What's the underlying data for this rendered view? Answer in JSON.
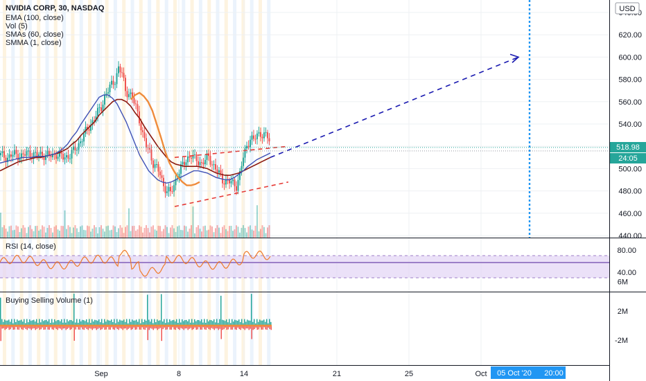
{
  "header": {
    "symbol_line": "NVIDIA CORP, 30, NASDAQ",
    "indicators": [
      "EMA (100, close)",
      "Vol (5)",
      "SMAs (60, close)",
      "SMMA (1, close)"
    ]
  },
  "currency_button": "USD",
  "price_badge": "518.98",
  "countdown_badge": "24:05",
  "cursor_badges": {
    "date": "05 Oct '20",
    "time": "20:00"
  },
  "colors": {
    "up": "#26a69a",
    "down": "#ef5350",
    "ema": "#8b1a10",
    "sma": "#3f51b5",
    "smma": "#ef8b3a",
    "dashed_red": "#e53935",
    "dashed_blue": "#1a1ab0",
    "vertical_line": "#2196f3",
    "badge_blue": "#2196f3",
    "rsi_band": "#e3d4f5",
    "rsi_line": "#ef7a2a",
    "rsi_mid": "#9c7fc8"
  },
  "chart_data": [
    {
      "type": "candlestick",
      "name": "main",
      "ylim": [
        440,
        645
      ],
      "y_ticks": [
        440,
        460,
        480,
        500,
        520,
        540,
        560,
        580,
        600,
        620,
        640
      ],
      "y_tick_labels": [
        "440.00",
        "460.00",
        "480.00",
        "500.00",
        "520.00",
        "540.00",
        "560.00",
        "580.00",
        "600.00",
        "620.00",
        "640.00"
      ],
      "x_ticks": [
        "Sep",
        "8",
        "14",
        "21",
        "25",
        "Oct"
      ],
      "last_price": 518.98,
      "series": [
        {
          "name": "close",
          "x": [
            0,
            10,
            20,
            30,
            40,
            50,
            60,
            70,
            80,
            90,
            100,
            110,
            115,
            120,
            125,
            130,
            140,
            145,
            150,
            155,
            160,
            165,
            170,
            175,
            180,
            185,
            190,
            195,
            200,
            205,
            210,
            215,
            220,
            225,
            230,
            235,
            240,
            245,
            250,
            255,
            260,
            265,
            270,
            275,
            280,
            290,
            300,
            310,
            320,
            330,
            340,
            345,
            350,
            355,
            360,
            365,
            370,
            375,
            380,
            385,
            390
          ],
          "values": [
            512,
            510,
            513,
            511,
            514,
            512,
            513,
            511,
            513,
            510,
            512,
            519,
            525,
            530,
            535,
            540,
            550,
            555,
            565,
            570,
            575,
            580,
            590,
            585,
            570,
            568,
            563,
            555,
            545,
            530,
            520,
            515,
            505,
            500,
            495,
            485,
            480,
            478,
            485,
            495,
            500,
            505,
            510,
            512,
            508,
            505,
            510,
            500,
            490,
            488,
            485,
            495,
            510,
            520,
            528,
            525,
            530,
            532,
            530,
            528,
            522
          ]
        }
      ],
      "ema": {
        "name": "EMA (100, close)",
        "values": [
          498,
          500,
          502,
          504,
          506,
          507,
          508,
          509,
          510,
          510,
          511,
          512,
          513,
          514,
          516,
          518,
          522,
          525,
          530,
          534,
          538,
          542,
          548,
          552,
          556,
          560,
          562,
          562,
          560,
          556,
          550,
          545,
          538,
          532,
          526,
          520,
          515,
          510,
          506,
          504,
          503,
          502,
          502,
          502,
          502,
          501,
          500,
          498,
          496,
          495,
          494,
          494,
          495,
          496,
          498,
          500,
          502,
          504,
          506,
          508,
          510
        ]
      },
      "sma": {
        "name": "SMAs (60, close)",
        "values": [
          505,
          506,
          507,
          508,
          509,
          510,
          510,
          510,
          511,
          511,
          511,
          512,
          513,
          515,
          518,
          522,
          528,
          533,
          540,
          546,
          552,
          558,
          564,
          566,
          566,
          563,
          558,
          550,
          542,
          532,
          522,
          512,
          505,
          498,
          494,
          490,
          488,
          487,
          488,
          490,
          492,
          494,
          496,
          498,
          498,
          497,
          496,
          494,
          492,
          491,
          490,
          490,
          492,
          495,
          498,
          502,
          505,
          508,
          510,
          512,
          514
        ]
      },
      "smma": {
        "name": "SMMA (1, close)",
        "values": [
          null,
          null,
          null,
          null,
          null,
          null,
          null,
          null,
          null,
          null,
          null,
          null,
          null,
          null,
          null,
          null,
          null,
          null,
          null,
          null,
          null,
          null,
          null,
          null,
          562,
          566,
          568,
          565,
          560,
          552,
          540,
          528,
          515,
          505,
          498,
          492,
          488,
          485,
          485,
          486,
          488
        ]
      },
      "trend_lines": [
        {
          "name": "upper-channel",
          "from": [
            510,
            252
          ],
          "to": [
            520,
            416
          ]
        },
        {
          "name": "lower-channel",
          "from": [
            466,
            252
          ],
          "to": [
            488,
            416
          ]
        },
        {
          "name": "projection",
          "from": [
            510,
            390
          ],
          "to": [
            600,
            748
          ]
        }
      ],
      "volume_axis": {
        "ylim": [
          0,
          10
        ]
      }
    },
    {
      "type": "line",
      "name": "RSI (14, close)",
      "ylim": [
        25,
        90
      ],
      "y_ticks": [
        40,
        80
      ],
      "y_tick_labels": [
        "40.00",
        "80.00"
      ],
      "band": [
        30,
        70
      ],
      "mid": 50
    },
    {
      "type": "bar",
      "name": "Buying Selling Volume (1)",
      "ylim": [
        -3,
        7
      ],
      "y_ticks": [
        -2,
        2,
        6
      ],
      "y_tick_labels": [
        "-2M",
        "2M",
        "6M"
      ]
    }
  ]
}
